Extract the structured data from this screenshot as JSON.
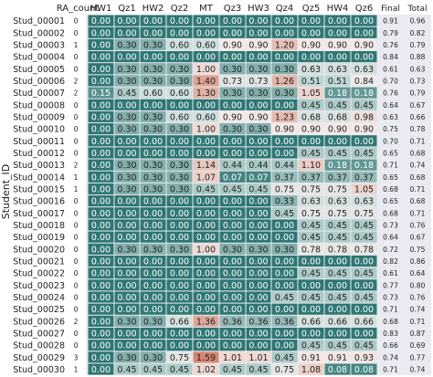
{
  "chart_data": {
    "type": "heatmap",
    "ylabel": "Student_ID",
    "xlabel": "",
    "columns": [
      "RA_count",
      "HW1",
      "Qz1",
      "HW2",
      "Qz2",
      "MT",
      "Qz3",
      "HW3",
      "Qz4",
      "Qz5",
      "HW4",
      "Qz6",
      "Final",
      "Total"
    ],
    "rows": [
      "Stud_00001",
      "Stud_00002",
      "Stud_00003",
      "Stud_00004",
      "Stud_00005",
      "Stud_00006",
      "Stud_00007",
      "Stud_00008",
      "Stud_00009",
      "Stud_00010",
      "Stud_00011",
      "Stud_00012",
      "Stud_00013",
      "Stud_00014",
      "Stud_00015",
      "Stud_00016",
      "Stud_00017",
      "Stud_00018",
      "Stud_00019",
      "Stud_00020",
      "Stud_00021",
      "Stud_00022",
      "Stud_00023",
      "Stud_00024",
      "Stud_00025",
      "Stud_00026",
      "Stud_00027",
      "Stud_00028",
      "Stud_00029",
      "Stud_00030"
    ],
    "values": [
      [
        0,
        0.0,
        0.0,
        0.0,
        0.0,
        0.0,
        0.0,
        0.0,
        0.0,
        0.0,
        0.0,
        0.0,
        0.91,
        0.96
      ],
      [
        0,
        0.0,
        0.0,
        0.0,
        0.0,
        0.0,
        0.0,
        0.0,
        0.0,
        0.0,
        0.0,
        0.0,
        0.79,
        0.82
      ],
      [
        1,
        0.0,
        0.3,
        0.3,
        0.6,
        0.6,
        0.9,
        0.9,
        1.2,
        0.9,
        0.9,
        0.9,
        0.76,
        0.79
      ],
      [
        0,
        0.0,
        0.0,
        0.0,
        0.0,
        0.0,
        0.0,
        0.0,
        0.0,
        0.0,
        0.0,
        0.0,
        0.84,
        0.88
      ],
      [
        0,
        0.0,
        0.3,
        0.3,
        0.3,
        1.0,
        0.3,
        0.3,
        0.3,
        0.63,
        0.63,
        0.63,
        0.61,
        0.63
      ],
      [
        2,
        0.0,
        0.3,
        0.3,
        0.3,
        1.4,
        0.73,
        0.73,
        1.26,
        0.51,
        0.51,
        0.84,
        0.7,
        0.73
      ],
      [
        2,
        0.15,
        0.45,
        0.6,
        0.6,
        1.3,
        0.3,
        0.3,
        0.3,
        1.05,
        0.18,
        0.18,
        0.76,
        0.79
      ],
      [
        0,
        0.0,
        0.0,
        0.0,
        0.0,
        0.0,
        0.0,
        0.0,
        0.0,
        0.45,
        0.45,
        0.45,
        0.64,
        0.67
      ],
      [
        0,
        0.0,
        0.3,
        0.3,
        0.6,
        0.6,
        0.9,
        0.9,
        1.23,
        0.68,
        0.68,
        0.98,
        0.63,
        0.66
      ],
      [
        0,
        0.0,
        0.3,
        0.3,
        0.3,
        1.0,
        0.3,
        0.3,
        0.9,
        0.9,
        0.9,
        0.9,
        0.75,
        0.78
      ],
      [
        0,
        0.0,
        0.0,
        0.0,
        0.0,
        0.0,
        0.0,
        0.0,
        0.0,
        0.0,
        0.0,
        0.0,
        0.7,
        0.71
      ],
      [
        0,
        0.0,
        0.0,
        0.0,
        0.0,
        0.0,
        0.0,
        0.0,
        0.0,
        0.45,
        0.45,
        0.45,
        0.65,
        0.68
      ],
      [
        2,
        0.0,
        0.3,
        0.3,
        0.3,
        1.14,
        0.44,
        0.44,
        0.44,
        1.1,
        0.18,
        0.18,
        0.71,
        0.74
      ],
      [
        1,
        0.0,
        0.3,
        0.3,
        0.3,
        1.07,
        0.07,
        0.07,
        0.37,
        0.37,
        0.37,
        0.37,
        0.65,
        0.68
      ],
      [
        1,
        0.0,
        0.3,
        0.3,
        0.3,
        0.45,
        0.45,
        0.45,
        0.75,
        0.75,
        0.75,
        1.05,
        0.68,
        0.71
      ],
      [
        0,
        0.0,
        0.0,
        0.0,
        0.0,
        0.0,
        0.0,
        0.0,
        0.33,
        0.63,
        0.63,
        0.63,
        0.65,
        0.68
      ],
      [
        0,
        0.0,
        0.0,
        0.0,
        0.0,
        0.0,
        0.0,
        0.0,
        0.45,
        0.75,
        0.75,
        0.75,
        0.68,
        0.71
      ],
      [
        0,
        0.0,
        0.0,
        0.0,
        0.0,
        0.0,
        0.0,
        0.0,
        0.0,
        0.45,
        0.45,
        0.45,
        0.73,
        0.76
      ],
      [
        0,
        0.0,
        0.0,
        0.0,
        0.0,
        0.0,
        0.0,
        0.0,
        0.0,
        0.45,
        0.45,
        0.45,
        0.64,
        0.67
      ],
      [
        0,
        0.0,
        0.3,
        0.3,
        0.3,
        1.0,
        0.3,
        0.3,
        0.3,
        0.78,
        0.78,
        0.78,
        0.72,
        0.75
      ],
      [
        0,
        0.0,
        0.0,
        0.0,
        0.0,
        0.0,
        0.0,
        0.0,
        0.0,
        0.0,
        0.0,
        0.0,
        0.82,
        0.86
      ],
      [
        0,
        0.0,
        0.0,
        0.0,
        0.0,
        0.0,
        0.0,
        0.0,
        0.0,
        0.45,
        0.45,
        0.45,
        0.61,
        0.64
      ],
      [
        0,
        0.0,
        0.0,
        0.0,
        0.0,
        0.0,
        0.0,
        0.0,
        0.0,
        0.0,
        0.0,
        0.0,
        0.77,
        0.8
      ],
      [
        0,
        0.0,
        0.0,
        0.0,
        0.0,
        0.0,
        0.0,
        0.0,
        0.45,
        0.45,
        0.45,
        0.45,
        0.73,
        0.76
      ],
      [
        0,
        0.0,
        0.0,
        0.0,
        0.0,
        0.0,
        0.0,
        0.0,
        0.0,
        0.0,
        0.0,
        0.0,
        0.71,
        0.74
      ],
      [
        2,
        0.0,
        0.3,
        0.3,
        0.66,
        1.36,
        0.36,
        0.36,
        0.36,
        0.66,
        0.66,
        0.66,
        0.68,
        0.71
      ],
      [
        0,
        0.0,
        0.0,
        0.0,
        0.0,
        0.0,
        0.0,
        0.0,
        0.0,
        0.0,
        0.0,
        0.0,
        0.83,
        0.87
      ],
      [
        0,
        0.0,
        0.0,
        0.0,
        0.0,
        0.0,
        0.0,
        0.0,
        0.0,
        0.45,
        0.45,
        0.45,
        0.66,
        0.69
      ],
      [
        3,
        0.0,
        0.3,
        0.3,
        0.75,
        1.59,
        1.01,
        1.01,
        0.45,
        0.91,
        0.91,
        0.93,
        0.74,
        0.77
      ],
      [
        1,
        0.0,
        0.45,
        0.45,
        0.45,
        1.02,
        0.45,
        0.45,
        0.75,
        1.08,
        0.08,
        0.08,
        0.71,
        0.74
      ]
    ],
    "color_scale": {
      "range": [
        0,
        1.6
      ],
      "stops": [
        "#2f7774",
        "#c7dcd9",
        "#f4ece9",
        "#d48671"
      ]
    },
    "columns_colored": [
      "HW1",
      "Qz1",
      "HW2",
      "Qz2",
      "MT",
      "Qz3",
      "HW3",
      "Qz4",
      "Qz5",
      "HW4",
      "Qz6"
    ],
    "grid": false
  }
}
